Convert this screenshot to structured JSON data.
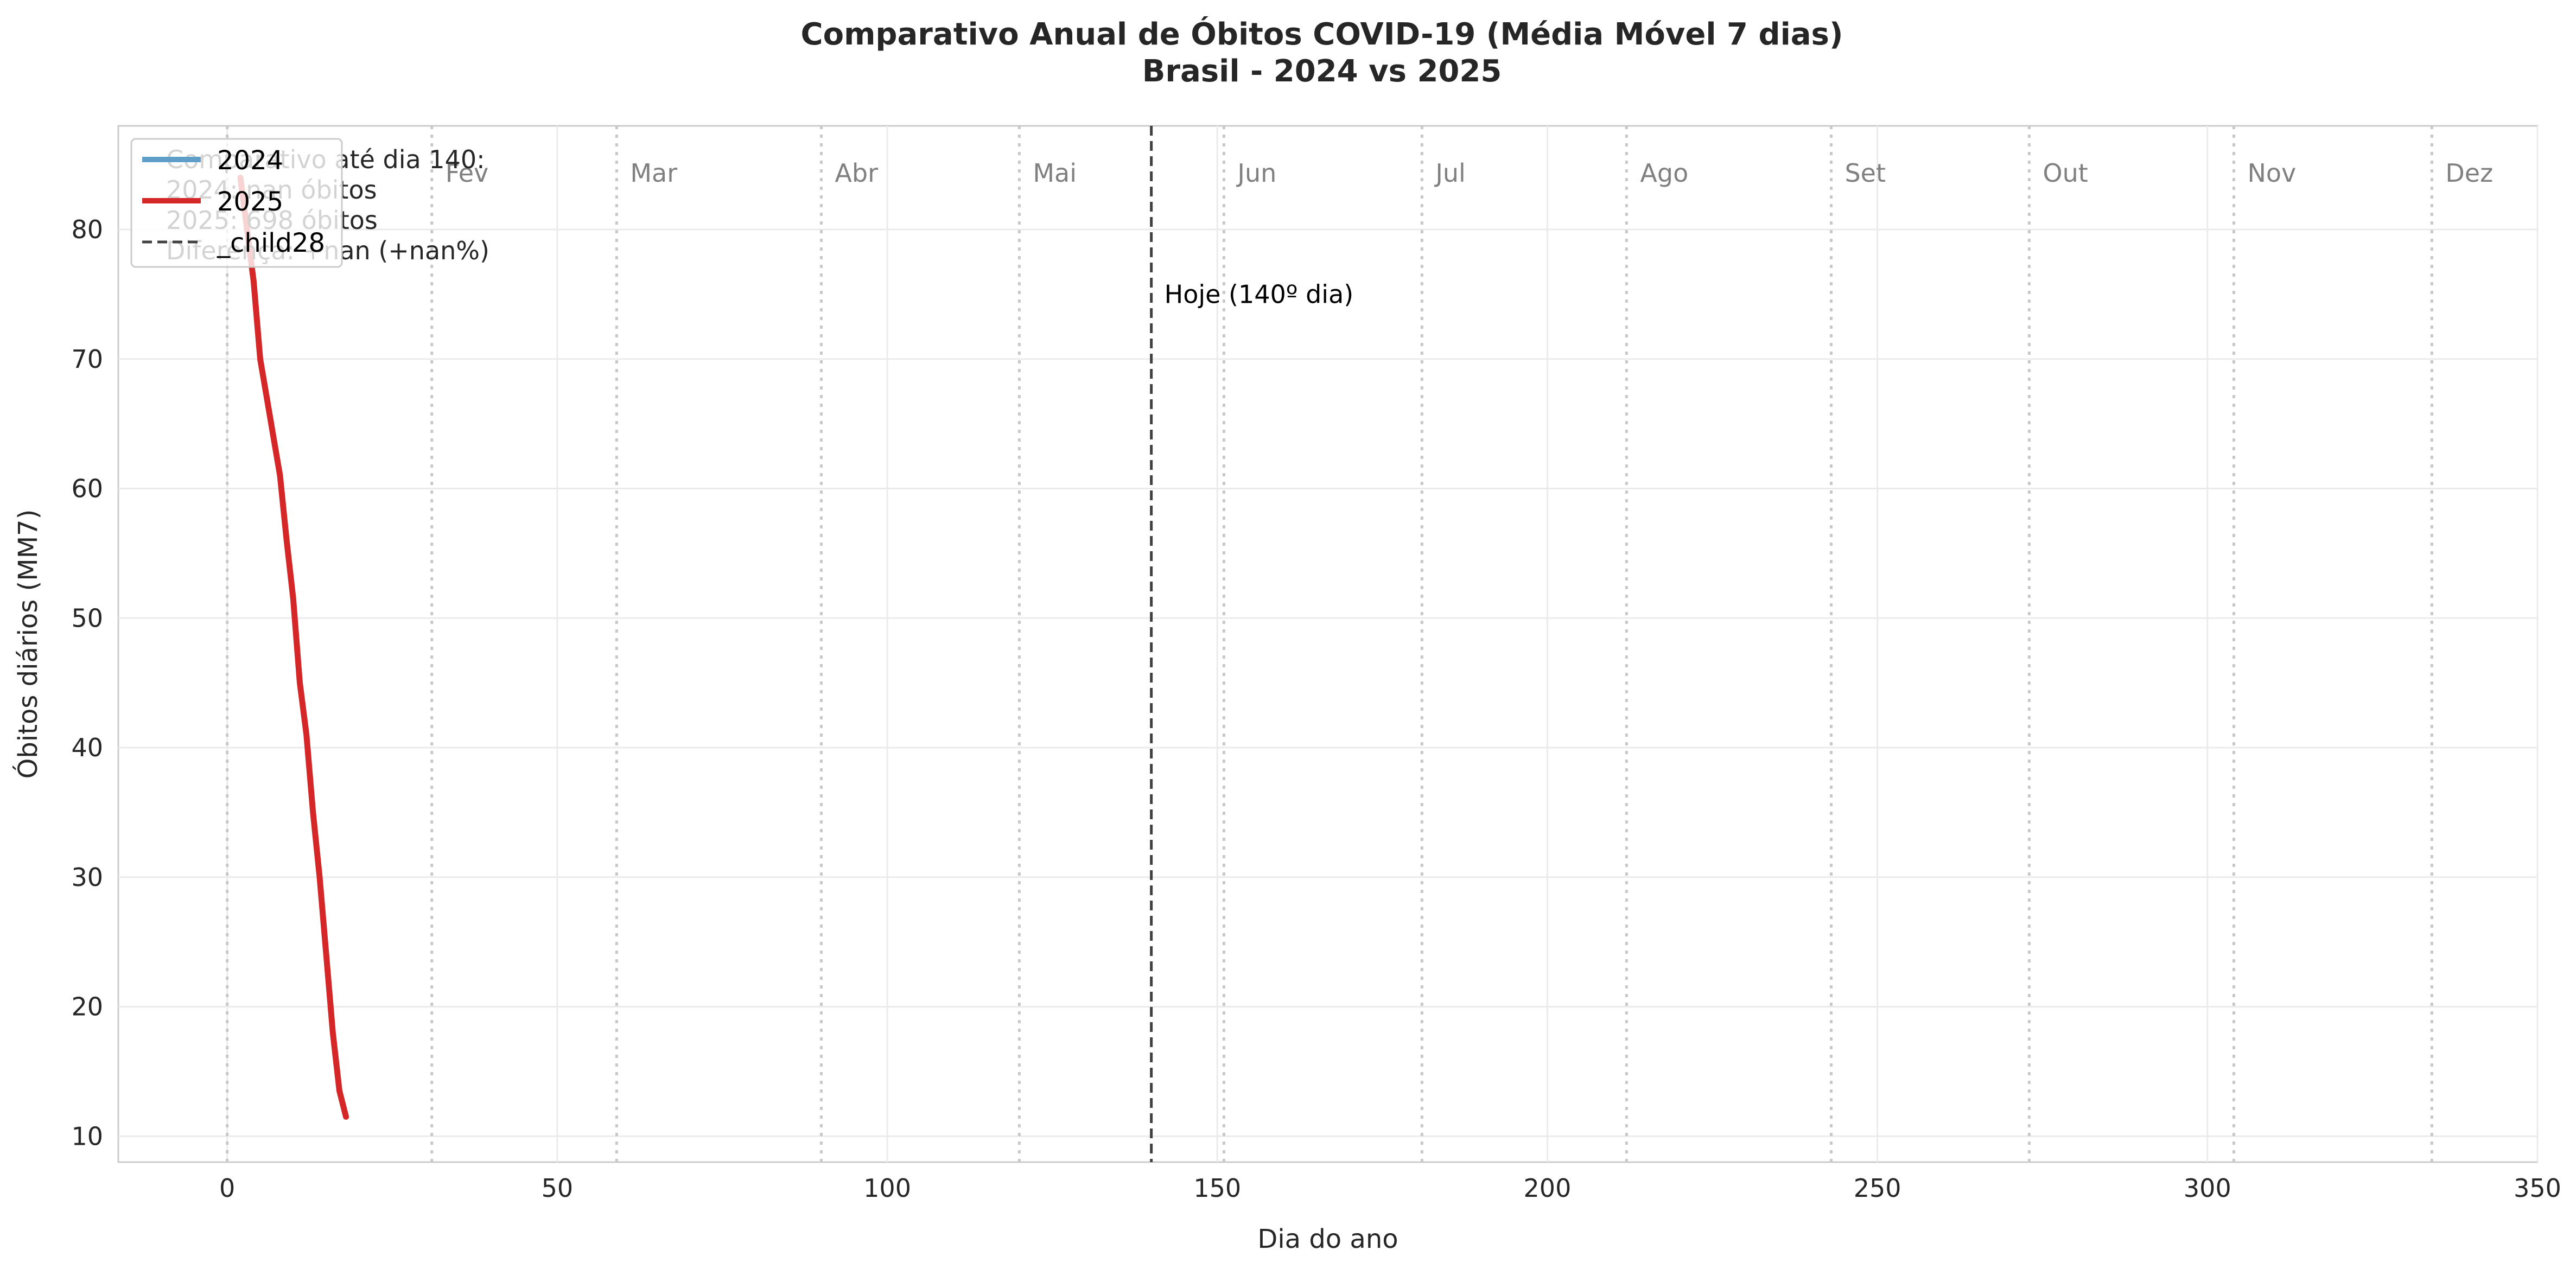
{
  "chart_data": {
    "type": "line",
    "title": "Comparativo Anual de Óbitos COVID-19 (Média Móvel 7 dias)",
    "subtitle": "Brasil - 2024 vs 2025",
    "xlabel": "Dia do ano",
    "ylabel": "Óbitos diários (MM7)",
    "xlim": [
      -16.5,
      350
    ],
    "ylim": [
      8,
      88
    ],
    "xticks": [
      0,
      50,
      100,
      150,
      200,
      250,
      300,
      350
    ],
    "yticks": [
      10,
      20,
      30,
      40,
      50,
      60,
      70,
      80
    ],
    "grid": true,
    "months": [
      {
        "label": "Fev",
        "day": 31
      },
      {
        "label": "Mar",
        "day": 59
      },
      {
        "label": "Abr",
        "day": 90
      },
      {
        "label": "Mai",
        "day": 120
      },
      {
        "label": "Jun",
        "day": 151
      },
      {
        "label": "Jul",
        "day": 181
      },
      {
        "label": "Ago",
        "day": 212
      },
      {
        "label": "Set",
        "day": 243
      },
      {
        "label": "Out",
        "day": 273
      },
      {
        "label": "Nov",
        "day": 304
      },
      {
        "label": "Dez",
        "day": 334
      }
    ],
    "month_start_day": 0,
    "today": {
      "day": 140,
      "label": "Hoje (140º dia)"
    },
    "series": [
      {
        "name": "2024",
        "color": "#5f9ec9",
        "x": [],
        "y": []
      },
      {
        "name": "2025",
        "color": "#d62728",
        "x": [
          2,
          3,
          4,
          5,
          6,
          7,
          8,
          9,
          10,
          11,
          12,
          13,
          14,
          15,
          16,
          17,
          18
        ],
        "y": [
          84,
          80,
          76,
          70,
          67,
          64,
          61,
          56,
          51.5,
          45,
          41,
          35,
          30,
          24,
          18,
          13.5,
          11.5
        ]
      }
    ],
    "legend": {
      "placement": "upper-left",
      "entries": [
        {
          "label": "2024",
          "color": "#5f9ec9",
          "style": "solid"
        },
        {
          "label": "2025",
          "color": "#d62728",
          "style": "solid"
        },
        {
          "label": "_child28",
          "color": "#404040",
          "style": "dashed"
        }
      ]
    },
    "info_box": [
      "Comparativo até dia 140:",
      "2024: nan óbitos",
      "2025: 698 óbitos",
      "Diferença: +nan (+nan%)"
    ]
  }
}
